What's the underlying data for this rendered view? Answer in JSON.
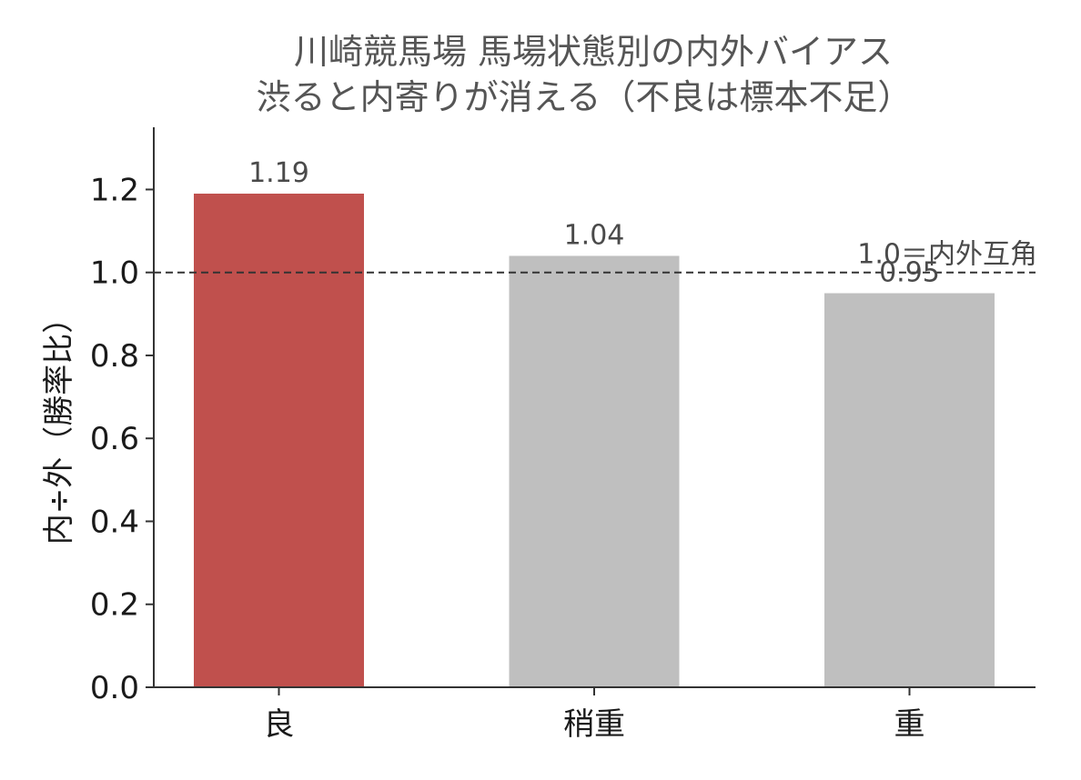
{
  "chart_data": {
    "type": "bar",
    "title": "川崎競馬場 馬場状態別の内外バイアス",
    "subtitle": "渋ると内寄りが消える（不良は標本不足）",
    "xlabel": "",
    "ylabel": "内÷外（勝率比）",
    "categories": [
      "良",
      "稍重",
      "重"
    ],
    "values": [
      1.19,
      1.04,
      0.95
    ],
    "value_labels": [
      "1.19",
      "1.04",
      "0.95"
    ],
    "bar_colors": [
      "#c0504d",
      "#bfbfbf",
      "#bfbfbf"
    ],
    "ylim": [
      0,
      1.35
    ],
    "yticks": [
      0.0,
      0.2,
      0.4,
      0.6,
      0.8,
      1.0,
      1.2
    ],
    "ytick_labels": [
      "0.0",
      "0.2",
      "0.4",
      "0.6",
      "0.8",
      "1.0",
      "1.2"
    ],
    "reference_line": {
      "y": 1.0,
      "label": "1.0＝内外互角",
      "color": "#333333",
      "style": "dashed"
    },
    "grid": false,
    "legend": "none"
  }
}
